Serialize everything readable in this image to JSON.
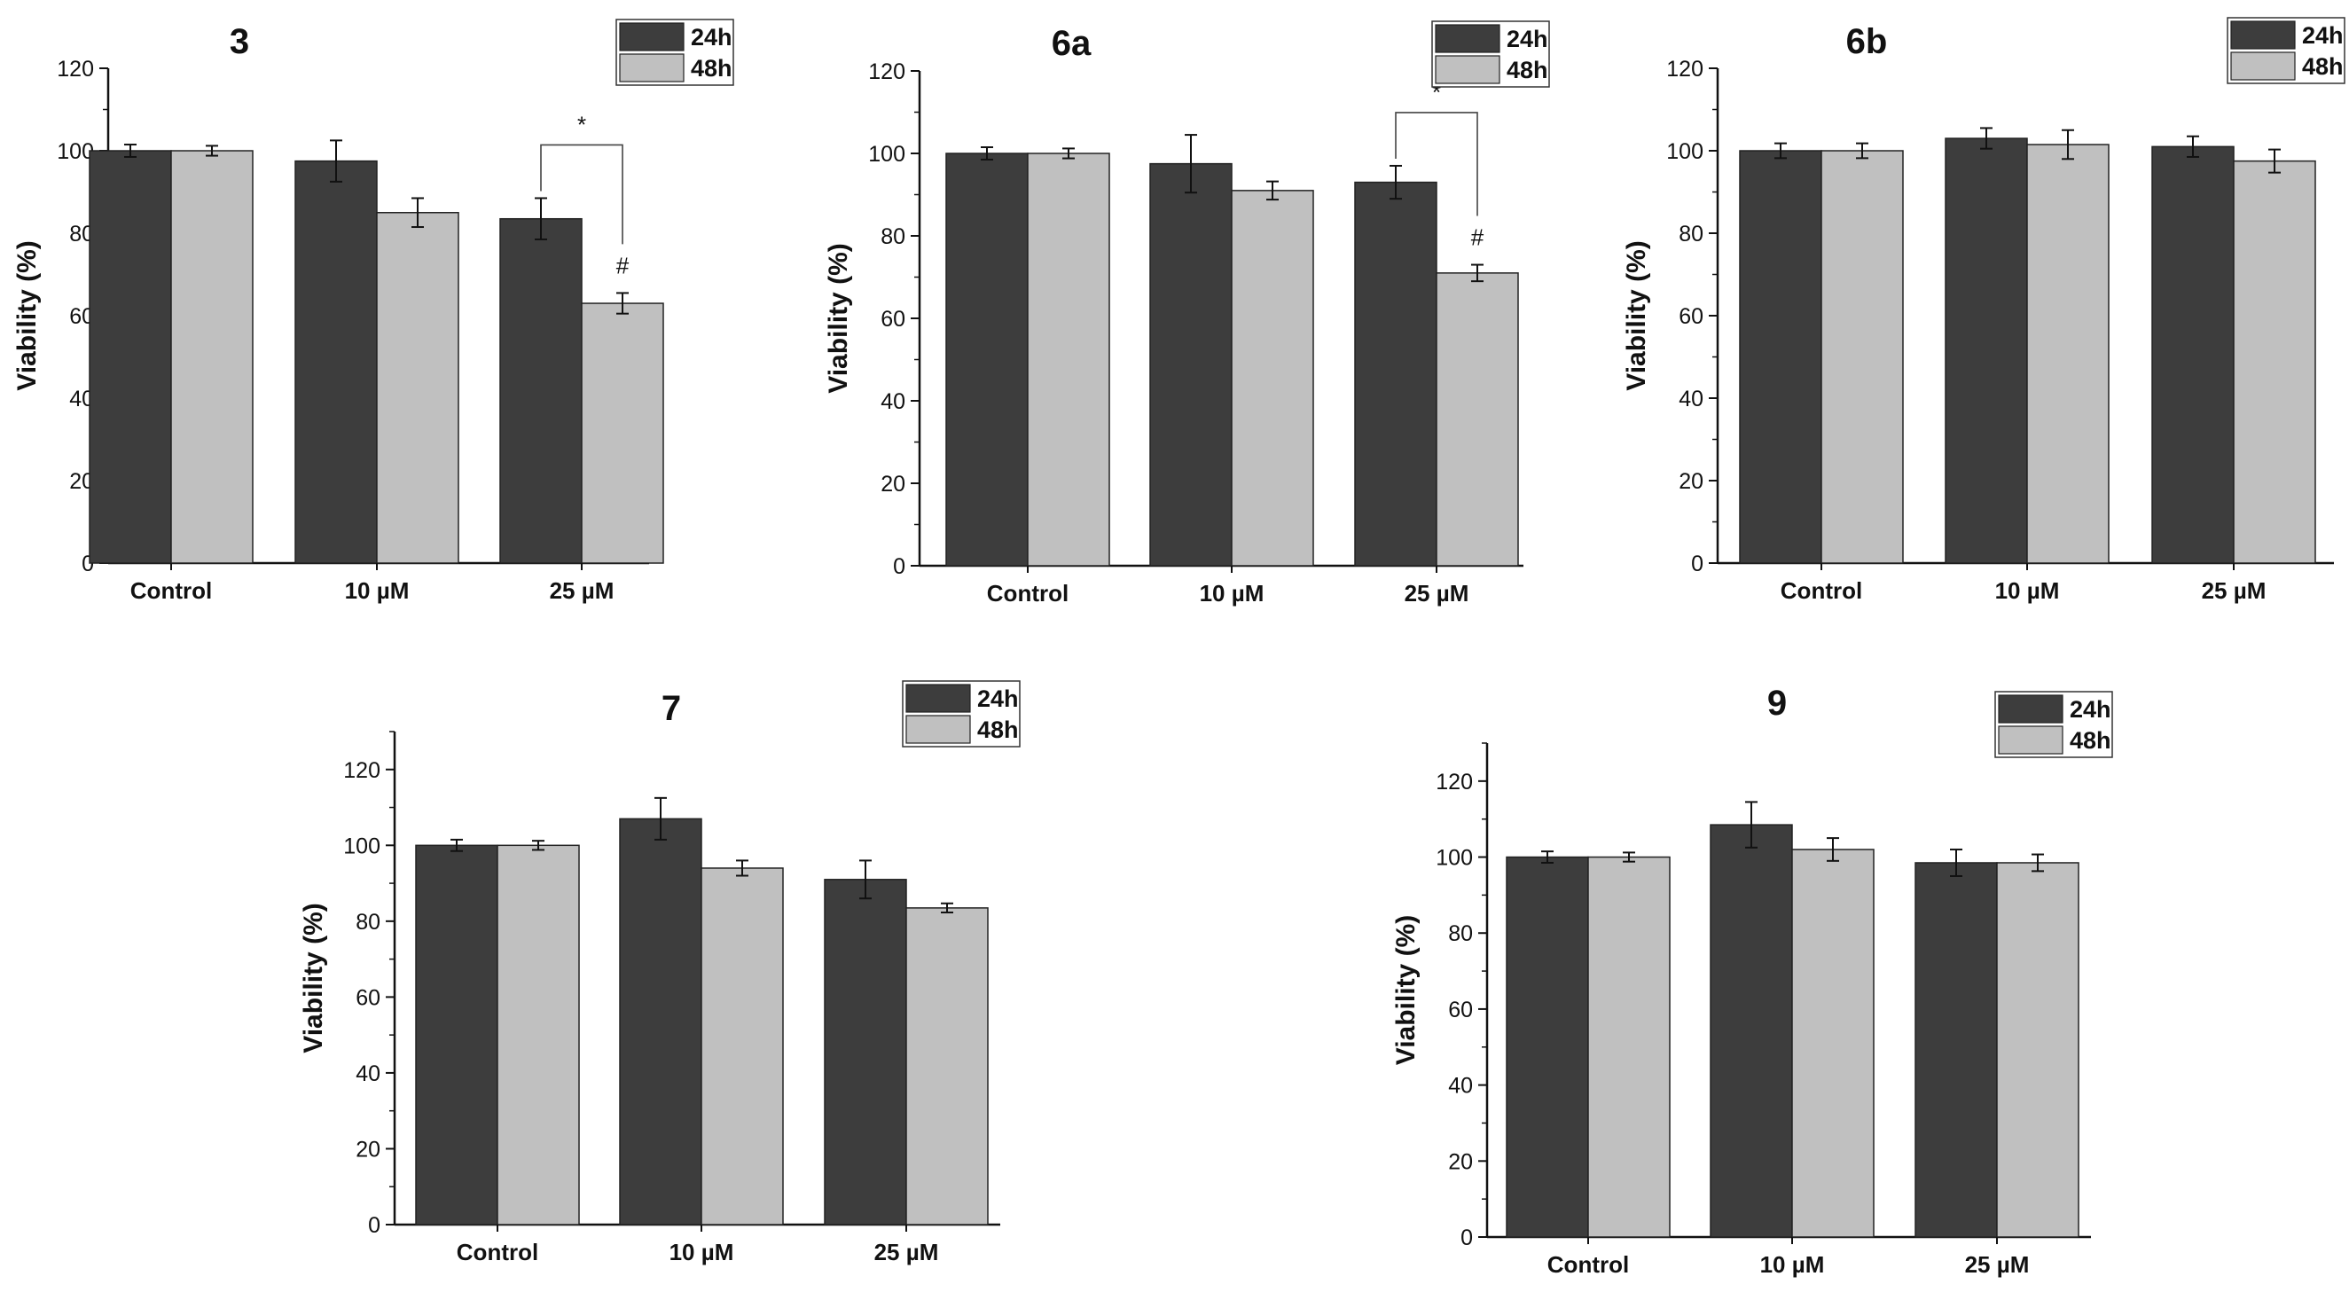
{
  "figure": {
    "description_note": "",
    "colors": {
      "24h": "#3d3d3d",
      "48h": "#c0c0c0",
      "axis": "#111111"
    }
  },
  "chart_data": [
    {
      "type": "bar",
      "title": "3",
      "ylabel": "Viability (%)",
      "xlabel": "",
      "ylim": [
        0,
        120
      ],
      "yticks": [
        0,
        20,
        40,
        60,
        80,
        100,
        120
      ],
      "categories": [
        "Control",
        "10 µM",
        "25 µM"
      ],
      "series": [
        {
          "name": "24h",
          "values": [
            100,
            97.5,
            83.5
          ],
          "errors": [
            1.5,
            5,
            5
          ]
        },
        {
          "name": "48h",
          "values": [
            100,
            85,
            63
          ],
          "errors": [
            1.2,
            3.5,
            2.5
          ]
        }
      ],
      "legend": {
        "entries": [
          "24h",
          "48h"
        ],
        "position": "top-right"
      },
      "significance": {
        "category_index": 2,
        "bracket_label": "*",
        "bar_label": "#"
      }
    },
    {
      "type": "bar",
      "title": "6a",
      "ylabel": "Viability (%)",
      "xlabel": "",
      "ylim": [
        0,
        120
      ],
      "yticks": [
        0,
        20,
        40,
        60,
        80,
        100,
        120
      ],
      "categories": [
        "Control",
        "10 µM",
        "25 µM"
      ],
      "series": [
        {
          "name": "24h",
          "values": [
            100,
            97.5,
            93
          ],
          "errors": [
            1.5,
            7,
            4
          ]
        },
        {
          "name": "48h",
          "values": [
            100,
            91,
            71
          ],
          "errors": [
            1.2,
            2.2,
            2
          ]
        }
      ],
      "legend": {
        "entries": [
          "24h",
          "48h"
        ],
        "position": "top-right"
      },
      "significance": {
        "category_index": 2,
        "bracket_label": "*",
        "bar_label": "#"
      }
    },
    {
      "type": "bar",
      "title": "6b",
      "ylabel": "Viability (%)",
      "xlabel": "",
      "ylim": [
        0,
        120
      ],
      "yticks": [
        0,
        20,
        40,
        60,
        80,
        100,
        120
      ],
      "categories": [
        "Control",
        "10 µM",
        "25 µM"
      ],
      "series": [
        {
          "name": "24h",
          "values": [
            100,
            103,
            101
          ],
          "errors": [
            1.8,
            2.5,
            2.5
          ]
        },
        {
          "name": "48h",
          "values": [
            100,
            101.5,
            97.5
          ],
          "errors": [
            1.8,
            3.5,
            2.8
          ]
        }
      ],
      "legend": {
        "entries": [
          "24h",
          "48h"
        ],
        "position": "top-right"
      },
      "significance": null
    },
    {
      "type": "bar",
      "title": "7",
      "ylabel": "Viability (%)",
      "xlabel": "",
      "ylim": [
        0,
        130
      ],
      "yticks": [
        0,
        20,
        40,
        60,
        80,
        100,
        120
      ],
      "categories": [
        "Control",
        "10 µM",
        "25 µM"
      ],
      "series": [
        {
          "name": "24h",
          "values": [
            100,
            107,
            91
          ],
          "errors": [
            1.5,
            5.5,
            5
          ]
        },
        {
          "name": "48h",
          "values": [
            100,
            94,
            83.5
          ],
          "errors": [
            1.2,
            2,
            1.2
          ]
        }
      ],
      "legend": {
        "entries": [
          "24h",
          "48h"
        ],
        "position": "top-right"
      },
      "significance": null
    },
    {
      "type": "bar",
      "title": "9",
      "ylabel": "Viability (%)",
      "xlabel": "",
      "ylim": [
        0,
        130
      ],
      "yticks": [
        0,
        20,
        40,
        60,
        80,
        100,
        120
      ],
      "categories": [
        "Control",
        "10 µM",
        "25 µM"
      ],
      "series": [
        {
          "name": "24h",
          "values": [
            100,
            108.5,
            98.5
          ],
          "errors": [
            1.5,
            6,
            3.5
          ]
        },
        {
          "name": "48h",
          "values": [
            100,
            102,
            98.5
          ],
          "errors": [
            1.2,
            3,
            2.2
          ]
        }
      ],
      "legend": {
        "entries": [
          "24h",
          "48h"
        ],
        "position": "top-right"
      },
      "significance": null
    }
  ]
}
